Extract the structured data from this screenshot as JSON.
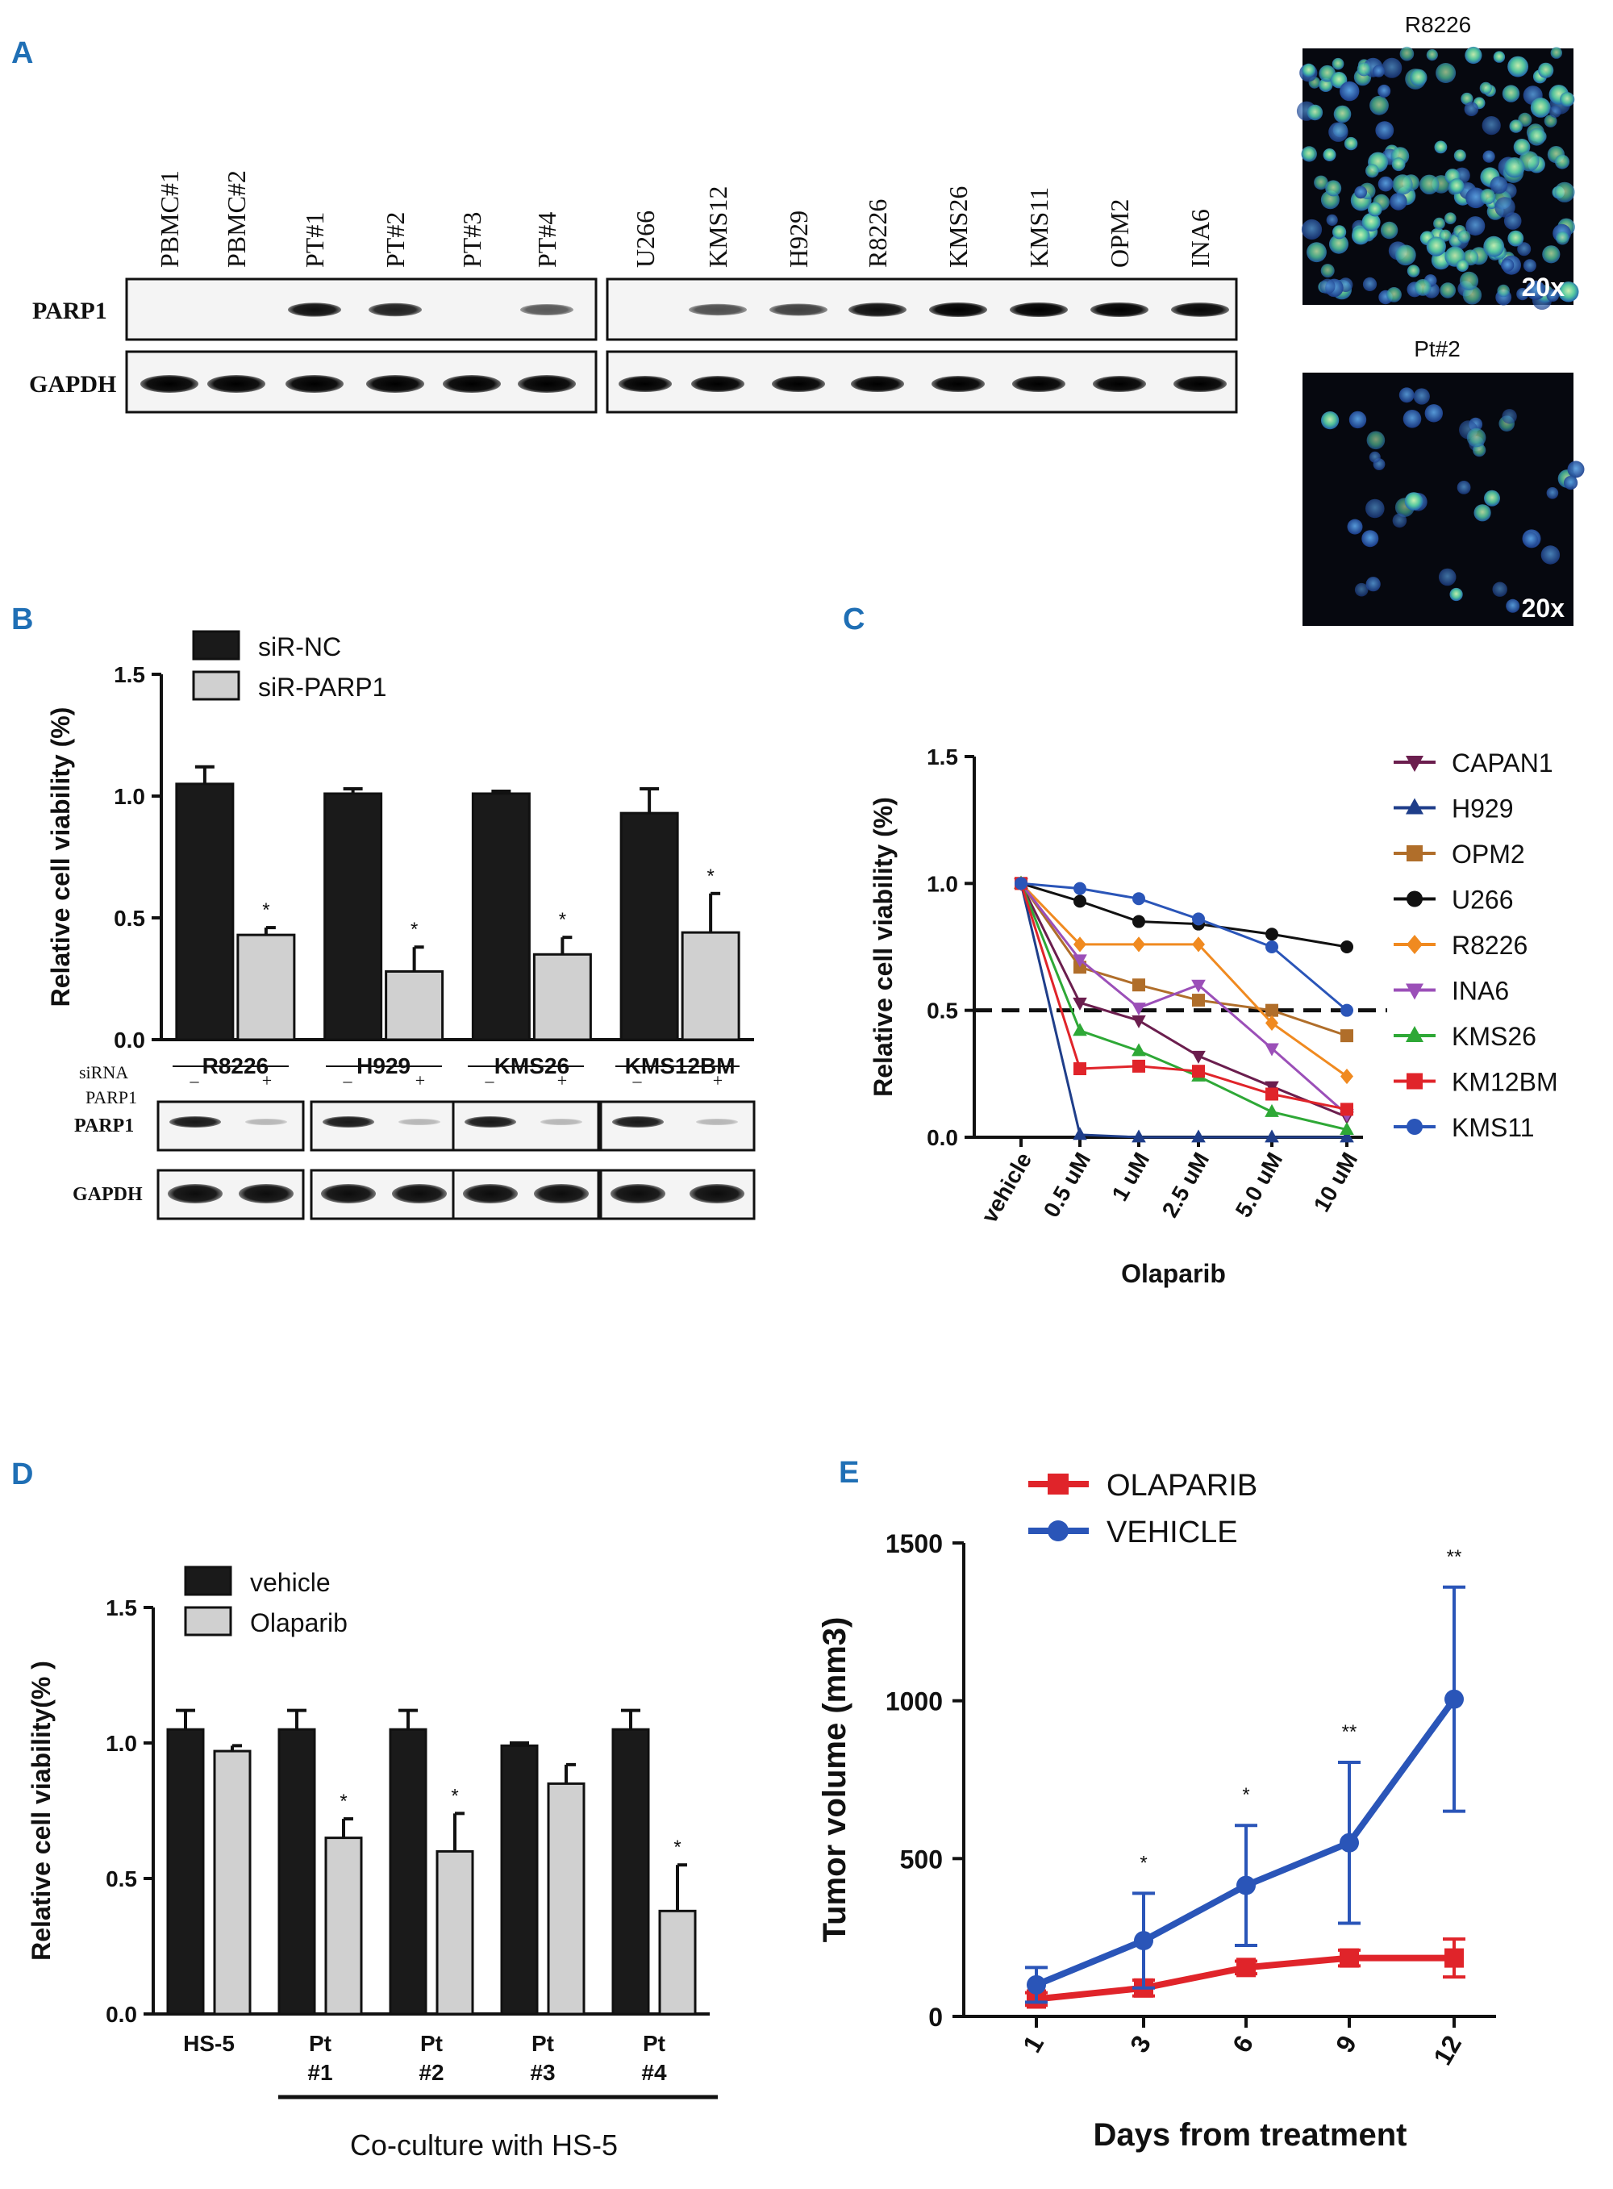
{
  "panels": {
    "A": "A",
    "B": "B",
    "C": "C",
    "D": "D",
    "E": "E"
  },
  "panelA": {
    "lanes_left": [
      "PBMC#1",
      "PBMC#2",
      "PT#1",
      "PT#2",
      "PT#3",
      "PT#4"
    ],
    "lanes_right": [
      "U266",
      "KMS12",
      "H929",
      "R8226",
      "KMS26",
      "KMS11",
      "OPM2",
      "INA6"
    ],
    "row_parp1": "PARP1",
    "row_gapdh": "GAPDH",
    "parp1_left_intensity": [
      0,
      0,
      0.9,
      0.8,
      0,
      0.45
    ],
    "parp1_right_intensity": [
      0,
      0.5,
      0.6,
      0.9,
      1,
      1,
      1,
      0.95
    ],
    "micro1_title": "R8226",
    "micro2_title": "Pt#2",
    "micro_mag": "20x"
  },
  "panelB": {
    "blot_siRNA": "siRNA",
    "blot_parp1_row": "PARP1",
    "blot_parp1_hdr": "PARP1",
    "blot_gapdh": "GAPDH",
    "minus": "–",
    "plus": "+",
    "star": "*"
  },
  "panelD": {
    "cocult": "Co-culture with HS-5",
    "star": "*"
  },
  "panelE": {
    "star1": "*",
    "star2": "**"
  },
  "chart_data": [
    {
      "id": "B",
      "type": "bar",
      "categories": [
        "R8226",
        "H929",
        "KMS26",
        "KMS12BM"
      ],
      "series": [
        {
          "name": "siR-NC",
          "values": [
            1.05,
            1.01,
            1.01,
            0.93
          ],
          "errors": [
            0.07,
            0.02,
            0.01,
            0.1
          ],
          "color": "#1a1a1a"
        },
        {
          "name": "siR-PARP1",
          "values": [
            0.43,
            0.28,
            0.35,
            0.44
          ],
          "errors": [
            0.03,
            0.1,
            0.07,
            0.16
          ],
          "color": "#d0d0d0"
        }
      ],
      "significance": [
        "*",
        "*",
        "*",
        "*"
      ],
      "ylabel": "Relative cell viability (%)",
      "yticks": [
        "0.0",
        "0.5",
        "1.0",
        "1.5"
      ],
      "ylim": [
        0,
        1.5
      ]
    },
    {
      "id": "C",
      "type": "line",
      "categories": [
        "vehicle",
        "0.5 uM",
        "1 uM",
        "2.5 uM",
        "5.0 uM",
        "10 uM"
      ],
      "series": [
        {
          "name": "CAPAN1",
          "marker": "tri-down",
          "color": "#6b1e4e",
          "values": [
            1.0,
            0.53,
            0.46,
            0.32,
            0.2,
            0.08
          ]
        },
        {
          "name": "H929",
          "marker": "tri-up",
          "color": "#1f3e8a",
          "values": [
            1.0,
            0.01,
            0.0,
            0.0,
            0.0,
            0.0
          ]
        },
        {
          "name": "OPM2",
          "marker": "square",
          "color": "#b06e2a",
          "values": [
            1.0,
            0.67,
            0.6,
            0.54,
            0.5,
            0.4
          ]
        },
        {
          "name": "U266",
          "marker": "circle",
          "color": "#111111",
          "values": [
            1.0,
            0.93,
            0.85,
            0.84,
            0.8,
            0.75
          ]
        },
        {
          "name": "R8226",
          "marker": "diamond",
          "color": "#f08a20",
          "values": [
            1.0,
            0.76,
            0.76,
            0.76,
            0.45,
            0.24
          ]
        },
        {
          "name": "INA6",
          "marker": "tri-down",
          "color": "#9b4fb8",
          "values": [
            1.0,
            0.7,
            0.51,
            0.6,
            0.35,
            0.09
          ]
        },
        {
          "name": "KMS26",
          "marker": "tri-up",
          "color": "#2ea836",
          "values": [
            1.0,
            0.42,
            0.34,
            0.24,
            0.1,
            0.03
          ]
        },
        {
          "name": "KM12BM",
          "marker": "square",
          "color": "#e0242a",
          "values": [
            1.0,
            0.27,
            0.28,
            0.26,
            0.17,
            0.11
          ]
        },
        {
          "name": "KMS11",
          "marker": "circle",
          "color": "#2a55b8",
          "values": [
            1.0,
            0.98,
            0.94,
            0.86,
            0.75,
            0.5
          ]
        }
      ],
      "reference_line": 0.5,
      "xlabel": "Olaparib",
      "ylabel": "Relative cell viability (%)",
      "yticks": [
        "0.0",
        "0.5",
        "1.0",
        "1.5"
      ],
      "ylim": [
        0,
        1.5
      ]
    },
    {
      "id": "D",
      "type": "bar",
      "categories": [
        "HS-5",
        "Pt\n#1",
        "Pt\n#2",
        "Pt\n#3",
        "Pt\n#4"
      ],
      "series": [
        {
          "name": "vehicle",
          "values": [
            1.05,
            1.05,
            1.05,
            0.99,
            1.05
          ],
          "errors": [
            0.07,
            0.07,
            0.07,
            0.01,
            0.07
          ],
          "color": "#1a1a1a"
        },
        {
          "name": "Olaparib",
          "values": [
            0.97,
            0.65,
            0.6,
            0.85,
            0.38
          ],
          "errors": [
            0.02,
            0.07,
            0.14,
            0.07,
            0.17
          ],
          "color": "#d0d0d0"
        }
      ],
      "significance": [
        "",
        "*",
        "*",
        "",
        "*"
      ],
      "ylabel": "Relative cell viability(% )",
      "yticks": [
        "0.0",
        "0.5",
        "1.0",
        "1.5"
      ],
      "ylim": [
        0,
        1.5
      ]
    },
    {
      "id": "E",
      "type": "line",
      "categories": [
        "1",
        "3",
        "6",
        "9",
        "12"
      ],
      "series": [
        {
          "name": "OLAPARIB",
          "marker": "square",
          "color": "#e0242a",
          "values": [
            55,
            90,
            155,
            185,
            185
          ],
          "errors": [
            20,
            25,
            20,
            25,
            60
          ]
        },
        {
          "name": "VEHICLE",
          "marker": "circle",
          "color": "#2a55b8",
          "values": [
            100,
            240,
            415,
            550,
            1005
          ],
          "errors": [
            55,
            150,
            190,
            255,
            355
          ]
        }
      ],
      "significance": [
        "",
        "*",
        "*",
        "**",
        "**"
      ],
      "xlabel": "Days from treatment",
      "ylabel": "Tumor volume (mm3)",
      "yticks": [
        "0",
        "500",
        "1000",
        "1500"
      ],
      "ylim": [
        0,
        1500
      ]
    }
  ]
}
